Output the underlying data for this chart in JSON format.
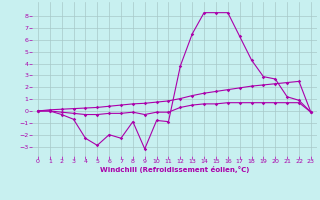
{
  "xlabel": "Windchill (Refroidissement éolien,°C)",
  "bg_color": "#c8f0f0",
  "grid_color": "#a8c8c8",
  "line_color": "#aa00aa",
  "xlim": [
    -0.5,
    23.5
  ],
  "ylim": [
    -3.8,
    9.2
  ],
  "yticks": [
    -3,
    -2,
    -1,
    0,
    1,
    2,
    3,
    4,
    5,
    6,
    7,
    8
  ],
  "xticks": [
    0,
    1,
    2,
    3,
    4,
    5,
    6,
    7,
    8,
    9,
    10,
    11,
    12,
    13,
    14,
    15,
    16,
    17,
    18,
    19,
    20,
    21,
    22,
    23
  ],
  "x": [
    0,
    1,
    2,
    3,
    4,
    5,
    6,
    7,
    8,
    9,
    10,
    11,
    12,
    13,
    14,
    15,
    16,
    17,
    18,
    19,
    20,
    21,
    22,
    23
  ],
  "y_main": [
    0.0,
    0.0,
    -0.3,
    -0.7,
    -2.3,
    -2.9,
    -2.0,
    -2.3,
    -0.9,
    -3.2,
    -0.8,
    -0.9,
    3.8,
    6.5,
    8.3,
    8.3,
    8.3,
    6.3,
    4.3,
    2.9,
    2.7,
    1.2,
    0.9,
    -0.1
  ],
  "y_flat": [
    0.0,
    0.0,
    -0.1,
    -0.2,
    -0.3,
    -0.3,
    -0.2,
    -0.2,
    -0.1,
    -0.3,
    -0.1,
    -0.1,
    0.3,
    0.5,
    0.6,
    0.6,
    0.7,
    0.7,
    0.7,
    0.7,
    0.7,
    0.7,
    0.7,
    -0.1
  ],
  "y_trend": [
    0.0,
    0.1,
    0.15,
    0.2,
    0.25,
    0.3,
    0.4,
    0.5,
    0.6,
    0.65,
    0.75,
    0.85,
    1.05,
    1.3,
    1.5,
    1.65,
    1.8,
    1.95,
    2.1,
    2.2,
    2.3,
    2.4,
    2.5,
    -0.1
  ]
}
